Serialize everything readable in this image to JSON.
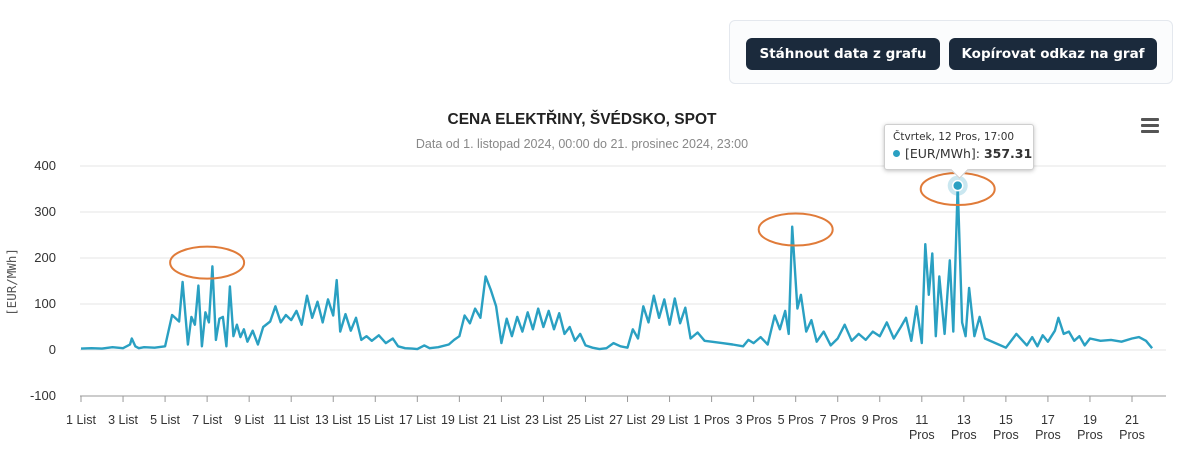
{
  "buttons": {
    "download": "Stáhnout data z grafu",
    "copy_link": "Kopírovat odkaz na graf"
  },
  "tooltip": {
    "date": "Čtvrtek, 12 Pros, 17:00",
    "series": "[EUR/MWh]",
    "value": "357.31"
  },
  "colors": {
    "series": "#2aa0c2",
    "annotation": "#e07b39",
    "button": "#1b2a3c"
  },
  "icons": {
    "menu": "hamburger-menu-icon"
  },
  "chart_data": {
    "type": "line",
    "title": "CENA ELEKTŘINY, ŠVÉDSKO, SPOT",
    "subtitle": "Data od 1. listopad 2024, 00:00 do 21. prosinec 2024, 23:00",
    "xlabel": "",
    "ylabel": "[EUR/MWh]",
    "ylim": [
      -100,
      400
    ],
    "yticks": [
      -100,
      0,
      100,
      200,
      300,
      400
    ],
    "grid": true,
    "legend": "none",
    "x_start": "2024-11-01T00:00",
    "x_end": "2024-12-21T23:00",
    "xticks": [
      {
        "date": "2024-11-01",
        "label": [
          "1 List"
        ]
      },
      {
        "date": "2024-11-03",
        "label": [
          "3 List"
        ]
      },
      {
        "date": "2024-11-05",
        "label": [
          "5 List"
        ]
      },
      {
        "date": "2024-11-07",
        "label": [
          "7 List"
        ]
      },
      {
        "date": "2024-11-09",
        "label": [
          "9 List"
        ]
      },
      {
        "date": "2024-11-11",
        "label": [
          "11 List"
        ]
      },
      {
        "date": "2024-11-13",
        "label": [
          "13 List"
        ]
      },
      {
        "date": "2024-11-15",
        "label": [
          "15 List"
        ]
      },
      {
        "date": "2024-11-17",
        "label": [
          "17 List"
        ]
      },
      {
        "date": "2024-11-19",
        "label": [
          "19 List"
        ]
      },
      {
        "date": "2024-11-21",
        "label": [
          "21 List"
        ]
      },
      {
        "date": "2024-11-23",
        "label": [
          "23 List"
        ]
      },
      {
        "date": "2024-11-25",
        "label": [
          "25 List"
        ]
      },
      {
        "date": "2024-11-27",
        "label": [
          "27 List"
        ]
      },
      {
        "date": "2024-11-29",
        "label": [
          "29 List"
        ]
      },
      {
        "date": "2024-12-01",
        "label": [
          "1 Pros"
        ]
      },
      {
        "date": "2024-12-03",
        "label": [
          "3 Pros"
        ]
      },
      {
        "date": "2024-12-05",
        "label": [
          "5 Pros"
        ]
      },
      {
        "date": "2024-12-07",
        "label": [
          "7 Pros"
        ]
      },
      {
        "date": "2024-12-09",
        "label": [
          "9 Pros"
        ]
      },
      {
        "date": "2024-12-11",
        "label": [
          "11",
          "Pros"
        ]
      },
      {
        "date": "2024-12-13",
        "label": [
          "13",
          "Pros"
        ]
      },
      {
        "date": "2024-12-15",
        "label": [
          "15",
          "Pros"
        ]
      },
      {
        "date": "2024-12-17",
        "label": [
          "17",
          "Pros"
        ]
      },
      {
        "date": "2024-12-19",
        "label": [
          "19",
          "Pros"
        ]
      },
      {
        "date": "2024-12-21",
        "label": [
          "21",
          "Pros"
        ]
      }
    ],
    "highlight": {
      "x": "2024-12-12T17:00",
      "y": 357.31
    },
    "annotations": [
      {
        "x": "2024-11-07T00:00",
        "y": 190
      },
      {
        "x": "2024-12-05T00:00",
        "y": 262
      },
      {
        "x": "2024-12-12T17:00",
        "y": 350
      }
    ],
    "series": [
      {
        "color": "#2aa0c2",
        "points": [
          [
            "2024-11-01T00:00",
            3
          ],
          [
            "2024-11-01T12:00",
            4
          ],
          [
            "2024-11-02T00:00",
            3
          ],
          [
            "2024-11-02T12:00",
            6
          ],
          [
            "2024-11-03T00:00",
            4
          ],
          [
            "2024-11-03T08:00",
            12
          ],
          [
            "2024-11-03T10:00",
            25
          ],
          [
            "2024-11-03T14:00",
            8
          ],
          [
            "2024-11-03T18:00",
            4
          ],
          [
            "2024-11-04T00:00",
            6
          ],
          [
            "2024-11-04T12:00",
            5
          ],
          [
            "2024-11-05T00:00",
            8
          ],
          [
            "2024-11-05T08:00",
            76
          ],
          [
            "2024-11-05T16:00",
            62
          ],
          [
            "2024-11-05T20:00",
            148
          ],
          [
            "2024-11-06T02:00",
            12
          ],
          [
            "2024-11-06T06:00",
            72
          ],
          [
            "2024-11-06T10:00",
            55
          ],
          [
            "2024-11-06T14:00",
            140
          ],
          [
            "2024-11-06T18:00",
            8
          ],
          [
            "2024-11-06T22:00",
            82
          ],
          [
            "2024-11-07T02:00",
            60
          ],
          [
            "2024-11-07T06:00",
            182
          ],
          [
            "2024-11-07T10:00",
            22
          ],
          [
            "2024-11-07T14:00",
            68
          ],
          [
            "2024-11-07T18:00",
            72
          ],
          [
            "2024-11-07T22:00",
            8
          ],
          [
            "2024-11-08T02:00",
            138
          ],
          [
            "2024-11-08T06:00",
            30
          ],
          [
            "2024-11-08T10:00",
            55
          ],
          [
            "2024-11-08T14:00",
            28
          ],
          [
            "2024-11-08T18:00",
            45
          ],
          [
            "2024-11-08T22:00",
            18
          ],
          [
            "2024-11-09T04:00",
            42
          ],
          [
            "2024-11-09T10:00",
            12
          ],
          [
            "2024-11-09T16:00",
            50
          ],
          [
            "2024-11-10T00:00",
            62
          ],
          [
            "2024-11-10T06:00",
            95
          ],
          [
            "2024-11-10T12:00",
            60
          ],
          [
            "2024-11-10T18:00",
            76
          ],
          [
            "2024-11-11T00:00",
            65
          ],
          [
            "2024-11-11T06:00",
            85
          ],
          [
            "2024-11-11T12:00",
            55
          ],
          [
            "2024-11-11T18:00",
            118
          ],
          [
            "2024-11-12T00:00",
            70
          ],
          [
            "2024-11-12T06:00",
            105
          ],
          [
            "2024-11-12T12:00",
            60
          ],
          [
            "2024-11-12T18:00",
            110
          ],
          [
            "2024-11-13T00:00",
            75
          ],
          [
            "2024-11-13T04:00",
            152
          ],
          [
            "2024-11-13T08:00",
            40
          ],
          [
            "2024-11-13T14:00",
            78
          ],
          [
            "2024-11-13T20:00",
            42
          ],
          [
            "2024-11-14T02:00",
            70
          ],
          [
            "2024-11-14T08:00",
            22
          ],
          [
            "2024-11-14T14:00",
            30
          ],
          [
            "2024-11-14T20:00",
            20
          ],
          [
            "2024-11-15T04:00",
            32
          ],
          [
            "2024-11-15T12:00",
            15
          ],
          [
            "2024-11-15T20:00",
            25
          ],
          [
            "2024-11-16T02:00",
            8
          ],
          [
            "2024-11-16T10:00",
            4
          ],
          [
            "2024-11-16T18:00",
            3
          ],
          [
            "2024-11-17T00:00",
            2
          ],
          [
            "2024-11-17T08:00",
            10
          ],
          [
            "2024-11-17T14:00",
            4
          ],
          [
            "2024-11-18T00:00",
            6
          ],
          [
            "2024-11-18T12:00",
            12
          ],
          [
            "2024-11-18T18:00",
            22
          ],
          [
            "2024-11-19T00:00",
            30
          ],
          [
            "2024-11-19T06:00",
            75
          ],
          [
            "2024-11-19T12:00",
            58
          ],
          [
            "2024-11-19T18:00",
            90
          ],
          [
            "2024-11-20T00:00",
            70
          ],
          [
            "2024-11-20T06:00",
            160
          ],
          [
            "2024-11-20T12:00",
            130
          ],
          [
            "2024-11-20T18:00",
            95
          ],
          [
            "2024-11-21T00:00",
            15
          ],
          [
            "2024-11-21T06:00",
            68
          ],
          [
            "2024-11-21T12:00",
            30
          ],
          [
            "2024-11-21T18:00",
            72
          ],
          [
            "2024-11-22T00:00",
            40
          ],
          [
            "2024-11-22T06:00",
            82
          ],
          [
            "2024-11-22T12:00",
            45
          ],
          [
            "2024-11-22T18:00",
            90
          ],
          [
            "2024-11-23T00:00",
            50
          ],
          [
            "2024-11-23T06:00",
            85
          ],
          [
            "2024-11-23T12:00",
            45
          ],
          [
            "2024-11-23T18:00",
            80
          ],
          [
            "2024-11-24T00:00",
            35
          ],
          [
            "2024-11-24T06:00",
            50
          ],
          [
            "2024-11-24T12:00",
            20
          ],
          [
            "2024-11-24T18:00",
            35
          ],
          [
            "2024-11-25T00:00",
            10
          ],
          [
            "2024-11-25T08:00",
            5
          ],
          [
            "2024-11-25T16:00",
            2
          ],
          [
            "2024-11-26T00:00",
            4
          ],
          [
            "2024-11-26T08:00",
            15
          ],
          [
            "2024-11-26T16:00",
            8
          ],
          [
            "2024-11-27T00:00",
            5
          ],
          [
            "2024-11-27T06:00",
            45
          ],
          [
            "2024-11-27T12:00",
            25
          ],
          [
            "2024-11-27T18:00",
            95
          ],
          [
            "2024-11-28T00:00",
            60
          ],
          [
            "2024-11-28T06:00",
            118
          ],
          [
            "2024-11-28T12:00",
            70
          ],
          [
            "2024-11-28T18:00",
            110
          ],
          [
            "2024-11-29T00:00",
            55
          ],
          [
            "2024-11-29T06:00",
            112
          ],
          [
            "2024-11-29T12:00",
            58
          ],
          [
            "2024-11-29T18:00",
            92
          ],
          [
            "2024-11-30T00:00",
            25
          ],
          [
            "2024-11-30T08:00",
            38
          ],
          [
            "2024-11-30T16:00",
            20
          ],
          [
            "2024-12-01T00:00",
            18
          ],
          [
            "2024-12-01T12:00",
            15
          ],
          [
            "2024-12-02T00:00",
            12
          ],
          [
            "2024-12-02T12:00",
            8
          ],
          [
            "2024-12-02T18:00",
            22
          ],
          [
            "2024-12-03T00:00",
            15
          ],
          [
            "2024-12-03T08:00",
            28
          ],
          [
            "2024-12-03T16:00",
            12
          ],
          [
            "2024-12-04T00:00",
            75
          ],
          [
            "2024-12-04T06:00",
            45
          ],
          [
            "2024-12-04T12:00",
            85
          ],
          [
            "2024-12-04T16:00",
            35
          ],
          [
            "2024-12-04T20:00",
            268
          ],
          [
            "2024-12-05T02:00",
            90
          ],
          [
            "2024-12-05T06:00",
            120
          ],
          [
            "2024-12-05T12:00",
            40
          ],
          [
            "2024-12-05T18:00",
            65
          ],
          [
            "2024-12-06T00:00",
            18
          ],
          [
            "2024-12-06T08:00",
            40
          ],
          [
            "2024-12-06T16:00",
            10
          ],
          [
            "2024-12-07T00:00",
            25
          ],
          [
            "2024-12-07T08:00",
            55
          ],
          [
            "2024-12-07T16:00",
            20
          ],
          [
            "2024-12-08T00:00",
            35
          ],
          [
            "2024-12-08T08:00",
            22
          ],
          [
            "2024-12-08T16:00",
            40
          ],
          [
            "2024-12-09T00:00",
            30
          ],
          [
            "2024-12-09T08:00",
            60
          ],
          [
            "2024-12-09T16:00",
            25
          ],
          [
            "2024-12-10T00:00",
            50
          ],
          [
            "2024-12-10T06:00",
            70
          ],
          [
            "2024-12-10T12:00",
            20
          ],
          [
            "2024-12-10T18:00",
            95
          ],
          [
            "2024-12-11T00:00",
            15
          ],
          [
            "2024-12-11T04:00",
            230
          ],
          [
            "2024-12-11T08:00",
            120
          ],
          [
            "2024-12-11T12:00",
            210
          ],
          [
            "2024-12-11T16:00",
            30
          ],
          [
            "2024-12-11T20:00",
            160
          ],
          [
            "2024-12-12T02:00",
            35
          ],
          [
            "2024-12-12T08:00",
            195
          ],
          [
            "2024-12-12T12:00",
            40
          ],
          [
            "2024-12-12T17:00",
            357.31
          ],
          [
            "2024-12-12T22:00",
            60
          ],
          [
            "2024-12-13T02:00",
            30
          ],
          [
            "2024-12-13T06:00",
            135
          ],
          [
            "2024-12-13T12:00",
            30
          ],
          [
            "2024-12-13T18:00",
            72
          ],
          [
            "2024-12-14T00:00",
            25
          ],
          [
            "2024-12-14T12:00",
            15
          ],
          [
            "2024-12-15T00:00",
            5
          ],
          [
            "2024-12-15T12:00",
            35
          ],
          [
            "2024-12-16T00:00",
            10
          ],
          [
            "2024-12-16T06:00",
            28
          ],
          [
            "2024-12-16T12:00",
            8
          ],
          [
            "2024-12-16T18:00",
            32
          ],
          [
            "2024-12-17T00:00",
            18
          ],
          [
            "2024-12-17T08:00",
            42
          ],
          [
            "2024-12-17T12:00",
            70
          ],
          [
            "2024-12-17T18:00",
            35
          ],
          [
            "2024-12-18T00:00",
            40
          ],
          [
            "2024-12-18T06:00",
            20
          ],
          [
            "2024-12-18T12:00",
            30
          ],
          [
            "2024-12-18T18:00",
            10
          ],
          [
            "2024-12-19T00:00",
            25
          ],
          [
            "2024-12-19T12:00",
            20
          ],
          [
            "2024-12-20T00:00",
            22
          ],
          [
            "2024-12-20T12:00",
            18
          ],
          [
            "2024-12-21T00:00",
            25
          ],
          [
            "2024-12-21T08:00",
            28
          ],
          [
            "2024-12-21T16:00",
            20
          ],
          [
            "2024-12-21T23:00",
            4
          ]
        ]
      }
    ]
  }
}
